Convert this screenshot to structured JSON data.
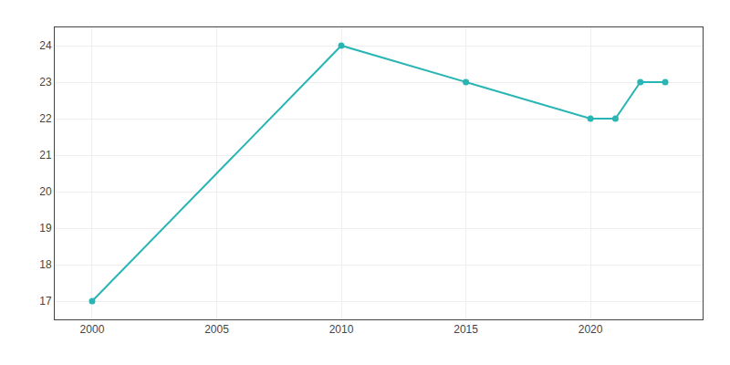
{
  "chart_data": {
    "type": "line",
    "x": [
      2000,
      2010,
      2015,
      2020,
      2021,
      2022,
      2023
    ],
    "values": [
      17,
      24,
      23,
      22,
      22,
      23,
      23
    ],
    "color": "#2ab5b5",
    "marker": "circle",
    "xlim": [
      1998.5,
      2024.5
    ],
    "ylim": [
      16.5,
      24.5
    ],
    "xticks": [
      2000,
      2005,
      2010,
      2015,
      2020
    ],
    "yticks": [
      17,
      18,
      19,
      20,
      21,
      22,
      23,
      24
    ],
    "grid": true
  }
}
